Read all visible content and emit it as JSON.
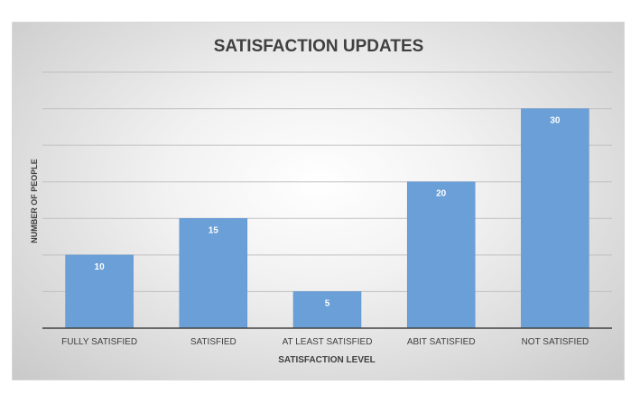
{
  "chart_data": {
    "type": "bar",
    "title": "SATISFACTION UPDATES",
    "xlabel": "SATISFACTION LEVEL",
    "ylabel": "NUMBER OF PEOPLE",
    "categories": [
      "FULLY SATISFIED",
      "SATISFIED",
      "AT LEAST SATISFIED",
      "ABIT SATISFIED",
      "NOT SATISFIED"
    ],
    "values": [
      10,
      15,
      5,
      20,
      30
    ],
    "ylim": [
      0,
      35
    ],
    "grid": true,
    "data_labels": true,
    "colors": {
      "bar": "#6a9fd8",
      "bar_border": "#5b8fc9",
      "data_label": "#ffffff",
      "text": "#404040",
      "title": "#404040",
      "gridline": "#bfbfbf",
      "axis": "#404040"
    }
  }
}
